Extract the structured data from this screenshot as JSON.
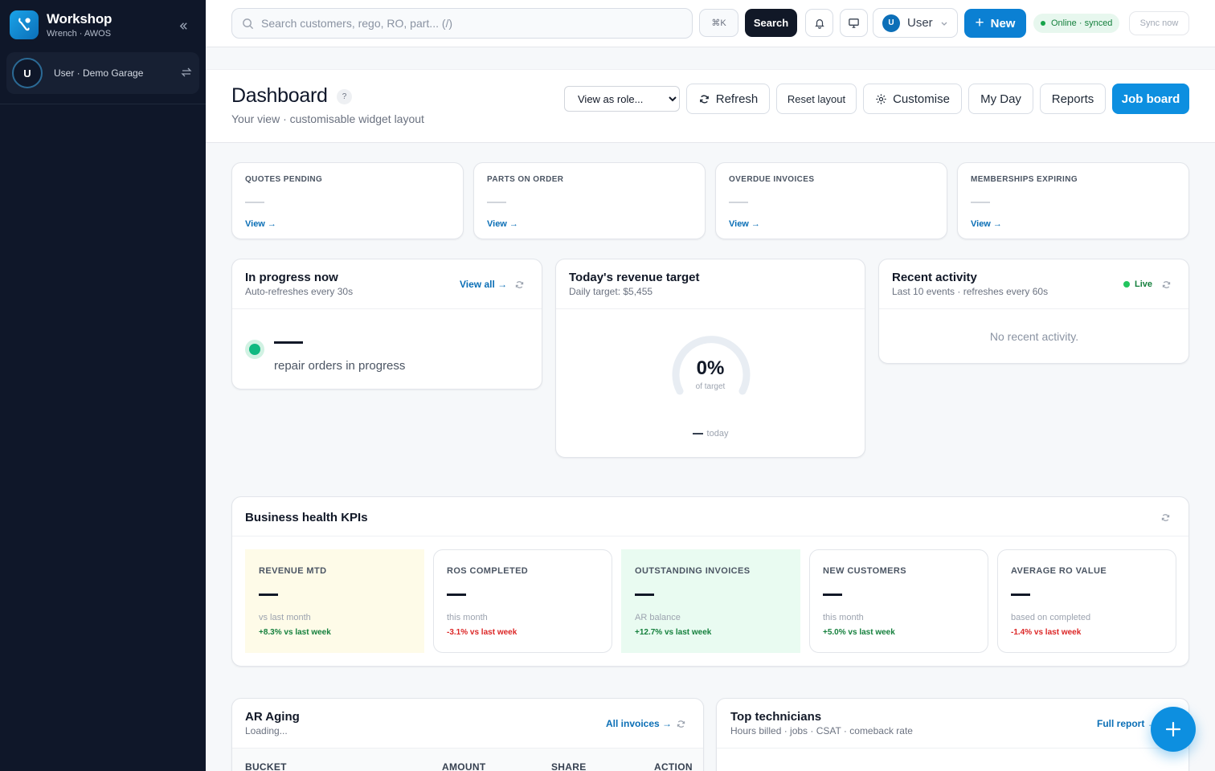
{
  "sidebar": {
    "brand_title": "Workshop",
    "brand_subtitle": "Wrench · AWOS",
    "user_initial": "U",
    "user_label": "User · Demo Garage"
  },
  "topbar": {
    "search_placeholder": "Search customers, rego, RO, part... (/)",
    "search_value": "",
    "kbd_label": "⌘K",
    "search_button": "Search",
    "user_initial": "U",
    "user_label": "User",
    "new_label": "New",
    "status_label": "Online · synced",
    "sync_label": "Sync now"
  },
  "header": {
    "title": "Dashboard",
    "help": "?",
    "subtitle": "Your view · customisable widget layout",
    "role_select": "View as role...",
    "refresh": "Refresh",
    "reset": "Reset layout",
    "customise": "Customise",
    "my_day": "My Day",
    "reports": "Reports",
    "job_board": "Job board"
  },
  "stats": [
    {
      "label": "Quotes pending",
      "link": "View →"
    },
    {
      "label": "Parts on order",
      "link": "View →"
    },
    {
      "label": "Overdue invoices",
      "link": "View →"
    },
    {
      "label": "Memberships expiring",
      "link": "View →"
    }
  ],
  "in_progress": {
    "title": "In progress now",
    "subtitle": "Auto-refreshes every 30s",
    "link": "View all →",
    "text": "repair orders in progress"
  },
  "revenue_target": {
    "title": "Today's revenue target",
    "subtitle": "Daily target: $5,455",
    "percent": "0%",
    "percent_value": 0,
    "of_target": "of target",
    "today": "today"
  },
  "recent_activity": {
    "title": "Recent activity",
    "subtitle": "Last 10 events · refreshes every 60s",
    "live": "Live",
    "empty": "No recent activity."
  },
  "kpis": {
    "title": "Business health KPIs",
    "items": [
      {
        "label": "Revenue MTD",
        "sub": "vs last month",
        "trend": "+8.3% vs last week",
        "direction": "up",
        "tint": "#fefbe8"
      },
      {
        "label": "ROs completed",
        "sub": "this month",
        "trend": "-3.1% vs last week",
        "direction": "down",
        "tint": "#ffffff"
      },
      {
        "label": "Outstanding invoices",
        "sub": "AR balance",
        "trend": "+12.7% vs last week",
        "direction": "up",
        "tint": "#e9fbf1"
      },
      {
        "label": "New customers",
        "sub": "this month",
        "trend": "+5.0% vs last week",
        "direction": "up",
        "tint": "#ffffff"
      },
      {
        "label": "Average RO value",
        "sub": "based on completed",
        "trend": "-1.4% vs last week",
        "direction": "down",
        "tint": "#ffffff"
      }
    ]
  },
  "ar_aging": {
    "title": "AR Aging",
    "subtitle": "Loading...",
    "link": "All invoices →",
    "columns": [
      "BUCKET",
      "AMOUNT",
      "SHARE",
      "ACTION"
    ]
  },
  "top_techs": {
    "title": "Top technicians",
    "subtitle": "Hours billed · jobs · CSAT · comeback rate",
    "link": "Full report →"
  },
  "colors": {
    "sidebar_bg": "#0f1729",
    "accent": "#0d8fe0",
    "success": "#15803d",
    "danger": "#dc2626"
  },
  "icons": [
    "wrench-logo-icon",
    "double-chevron-left-icon",
    "swap-icon",
    "search-icon",
    "bell-icon",
    "monitor-icon",
    "chevron-down-icon",
    "plus-icon",
    "refresh-icon",
    "gear-icon"
  ]
}
